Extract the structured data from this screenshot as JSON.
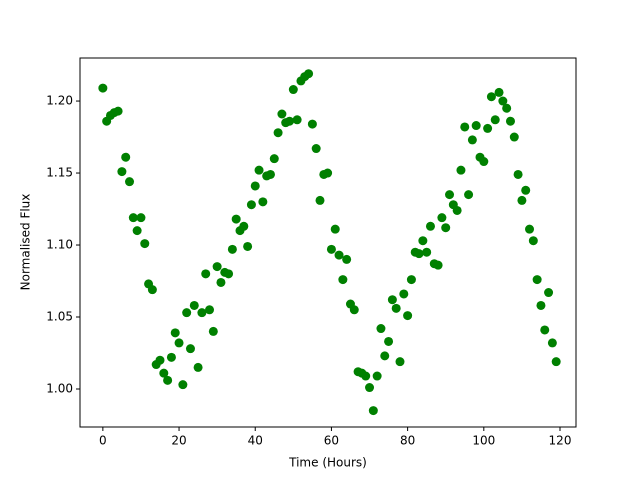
{
  "chart_data": {
    "type": "scatter",
    "xlabel": "Time (Hours)",
    "ylabel": "Normalised Flux",
    "color": "#008000",
    "grid": false,
    "xlim": [
      -6,
      124.2
    ],
    "ylim": [
      0.9736,
      1.2299
    ],
    "xticks": [
      0,
      20,
      40,
      60,
      80,
      100,
      120
    ],
    "yticks": [
      {
        "value": 1.0,
        "label": "1.00"
      },
      1.05,
      {
        "value": 1.1,
        "label": "1.10"
      },
      1.15,
      {
        "value": 1.2,
        "label": "1.20"
      }
    ],
    "x": [
      0,
      1,
      2,
      3,
      4,
      5,
      6,
      7,
      8,
      9,
      10,
      11,
      12,
      13,
      14,
      15,
      16,
      17,
      18,
      19,
      20,
      21,
      22,
      23,
      24,
      25,
      26,
      27,
      28,
      29,
      30,
      31,
      32,
      33,
      34,
      35,
      36,
      37,
      38,
      39,
      40,
      41,
      42,
      43,
      44,
      45,
      46,
      47,
      48,
      49,
      50,
      51,
      52,
      53,
      54,
      55,
      56,
      57,
      58,
      59,
      60,
      61,
      62,
      63,
      64,
      65,
      66,
      67,
      68,
      69,
      70,
      71,
      72,
      73,
      74,
      75,
      76,
      77,
      78,
      79,
      80,
      81,
      82,
      83,
      84,
      85,
      86,
      87,
      88,
      89,
      90,
      91,
      92,
      93,
      94,
      95,
      96,
      97,
      98,
      99,
      100,
      101,
      102,
      103,
      104,
      105,
      106,
      107,
      108,
      109,
      110,
      111,
      112,
      113,
      114,
      115,
      116,
      117,
      118,
      119
    ],
    "values": [
      1.209,
      1.186,
      1.19,
      1.192,
      1.193,
      1.151,
      1.161,
      1.144,
      1.119,
      1.11,
      1.119,
      1.101,
      1.073,
      1.069,
      1.017,
      1.02,
      1.011,
      1.006,
      1.022,
      1.039,
      1.032,
      1.003,
      1.053,
      1.028,
      1.058,
      1.015,
      1.053,
      1.08,
      1.055,
      1.04,
      1.085,
      1.074,
      1.081,
      1.08,
      1.097,
      1.118,
      1.11,
      1.113,
      1.099,
      1.128,
      1.141,
      1.152,
      1.13,
      1.148,
      1.149,
      1.16,
      1.178,
      1.191,
      1.185,
      1.186,
      1.208,
      1.187,
      1.214,
      1.217,
      1.219,
      1.184,
      1.167,
      1.131,
      1.149,
      1.15,
      1.097,
      1.111,
      1.093,
      1.076,
      1.09,
      1.059,
      1.055,
      1.012,
      1.011,
      1.009,
      1.001,
      0.985,
      1.009,
      1.042,
      1.023,
      1.033,
      1.062,
      1.056,
      1.019,
      1.066,
      1.051,
      1.076,
      1.095,
      1.094,
      1.103,
      1.095,
      1.113,
      1.087,
      1.086,
      1.119,
      1.112,
      1.135,
      1.128,
      1.124,
      1.152,
      1.182,
      1.135,
      1.173,
      1.183,
      1.161,
      1.158,
      1.181,
      1.203,
      1.187,
      1.206,
      1.2,
      1.195,
      1.186,
      1.175,
      1.149,
      1.131,
      1.138,
      1.111,
      1.103,
      1.076,
      1.058,
      1.041,
      1.067,
      1.032,
      1.019
    ]
  }
}
